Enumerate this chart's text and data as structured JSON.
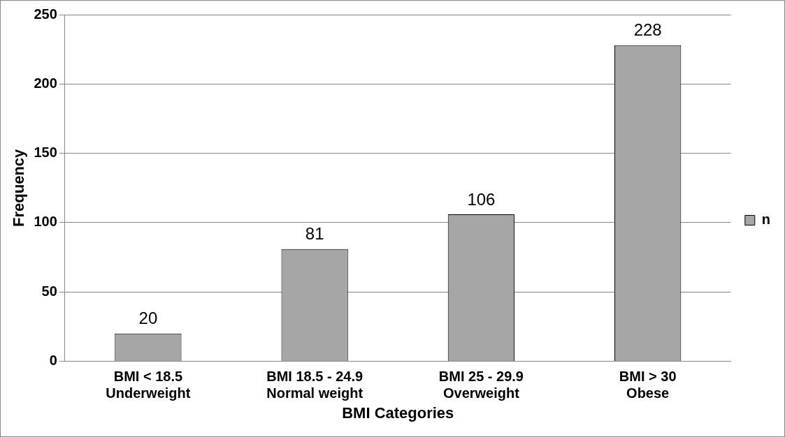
{
  "chart_data": {
    "type": "bar",
    "xlabel": "BMI Categories",
    "ylabel": "Frequency",
    "categories": [
      "BMI < 18.5\nUnderweight",
      "BMI 18.5 - 24.9\nNormal weight",
      "BMI 25 - 29.9\nOverweight",
      "BMI > 30\nObese"
    ],
    "series": [
      {
        "name": "n",
        "color": "#a6a6a6",
        "values": [
          20,
          81,
          106,
          228
        ]
      }
    ],
    "ylim": [
      0,
      250
    ],
    "yticks": [
      0,
      50,
      100,
      150,
      200,
      250
    ],
    "grid": "y",
    "legend": "right",
    "data_labels": true
  }
}
